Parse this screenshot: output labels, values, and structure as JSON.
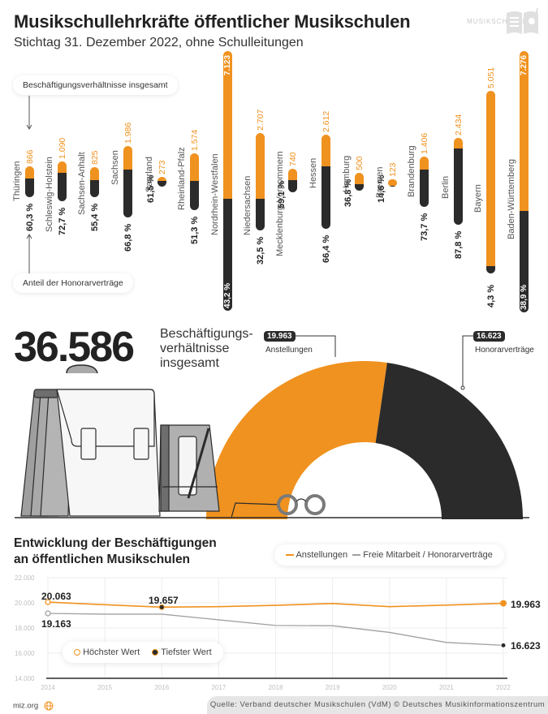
{
  "header": {
    "title": "Musikschullehrkräfte öffentlicher Musikschulen",
    "subtitle": "Stichtag 31. Dezember 2022, ohne Schulleitungen",
    "logo_text": "MUSIKSCHULEN",
    "logo_icon": "book-music-icon"
  },
  "annotations": {
    "total_label": "Beschäftigungsverhältnisse insgesamt",
    "share_label": "Anteil der Honorarverträge"
  },
  "colors": {
    "orange": "#f0921f",
    "dark": "#2b2b2b",
    "grey_line": "#a0a0a0"
  },
  "states": [
    {
      "name": "Thüringen",
      "total": "866",
      "pct": "60,3 %"
    },
    {
      "name": "Schleswig-Holstein",
      "total": "1.090",
      "pct": "72,7 %"
    },
    {
      "name": "Sachsen-Anhalt",
      "total": "825",
      "pct": "55,4 %"
    },
    {
      "name": "Sachsen",
      "total": "1.986",
      "pct": "66,8 %"
    },
    {
      "name": "Saarland",
      "total": "273",
      "pct": "61,5 %"
    },
    {
      "name": "Rheinland-Pfalz",
      "total": "1.574",
      "pct": "51,3 %"
    },
    {
      "name": "Nordrhein-Westfalen",
      "total": "7.123",
      "pct": "43,2 %"
    },
    {
      "name": "Niedersachsen",
      "total": "2.707",
      "pct": "32,5 %"
    },
    {
      "name": "Mecklenburg-Vorpommern",
      "total": "740",
      "pct": "59,1 %"
    },
    {
      "name": "Hessen",
      "total": "2.612",
      "pct": "66,4 %"
    },
    {
      "name": "Hamburg",
      "total": "500",
      "pct": "36,8 %"
    },
    {
      "name": "Bremen",
      "total": "123",
      "pct": "14,6 %"
    },
    {
      "name": "Brandenburg",
      "total": "1.406",
      "pct": "73,7 %"
    },
    {
      "name": "Berlin",
      "total": "2.434",
      "pct": "87,8 %"
    },
    {
      "name": "Bayern",
      "total": "5.051",
      "pct": "4,3 %"
    },
    {
      "name": "Baden-Württemberg",
      "total": "7.276",
      "pct": "38,9 %"
    }
  ],
  "summary": {
    "total": "36.586",
    "total_desc_1": "Beschäftigungs-",
    "total_desc_2": "verhältnisse",
    "total_desc_3": "insgesamt",
    "employed_value": "19.963",
    "employed_label": "Anstellungen",
    "freelance_value": "16.623",
    "freelance_label": "Honorarverträge"
  },
  "trend": {
    "title_1": "Entwicklung der Beschäftigungen",
    "title_2": "an öffentlichen Musikschulen",
    "legend_employed": "Anstellungen",
    "legend_freelance": "Freie Mitarbeit / Honorarverträge",
    "legend_max": "Höchster Wert",
    "legend_min": "Tiefster Wert",
    "y_ticks": [
      "22.000",
      "20.000",
      "18.000",
      "16.000",
      "14.000"
    ],
    "x_ticks": [
      "2014",
      "2015",
      "2016",
      "2017",
      "2018",
      "2019",
      "2020",
      "2021",
      "2022"
    ],
    "labels": {
      "emp_max": "20.063",
      "emp_min": "19.657",
      "emp_last": "19.963",
      "free_max": "19.163",
      "free_last": "16.623"
    }
  },
  "chart_data": [
    {
      "type": "bar",
      "title": "Musikschullehrkräfte öffentlicher Musikschulen",
      "subtitle": "Stichtag 31. Dezember 2022, ohne Schulleitungen",
      "categories": [
        "Thüringen",
        "Schleswig-Holstein",
        "Sachsen-Anhalt",
        "Sachsen",
        "Saarland",
        "Rheinland-Pfalz",
        "Nordrhein-Westfalen",
        "Niedersachsen",
        "Mecklenburg-Vorpommern",
        "Hessen",
        "Hamburg",
        "Bremen",
        "Brandenburg",
        "Berlin",
        "Bayern",
        "Baden-Württemberg"
      ],
      "series": [
        {
          "name": "Beschäftigungsverhältnisse insgesamt",
          "values": [
            866,
            1090,
            825,
            1986,
            273,
            1574,
            7123,
            2707,
            740,
            2612,
            500,
            123,
            1406,
            2434,
            5051,
            7276
          ]
        },
        {
          "name": "Anteil der Honorarverträge (%)",
          "values": [
            60.3,
            72.7,
            55.4,
            66.8,
            61.5,
            51.3,
            43.2,
            32.5,
            59.1,
            66.4,
            36.8,
            14.6,
            73.7,
            87.8,
            4.3,
            38.9
          ]
        }
      ]
    },
    {
      "type": "pie",
      "title": "36.586 Beschäftigungsverhältnisse insgesamt",
      "categories": [
        "Anstellungen",
        "Honorarverträge"
      ],
      "values": [
        19963,
        16623
      ]
    },
    {
      "type": "line",
      "title": "Entwicklung der Beschäftigungen an öffentlichen Musikschulen",
      "x": [
        2014,
        2015,
        2016,
        2017,
        2018,
        2019,
        2020,
        2021,
        2022
      ],
      "series": [
        {
          "name": "Anstellungen",
          "values": [
            20063,
            19850,
            19657,
            19700,
            19800,
            19950,
            19700,
            19820,
            19963
          ]
        },
        {
          "name": "Freie Mitarbeit / Honorarverträge",
          "values": [
            19163,
            19100,
            19100,
            18650,
            18200,
            18180,
            17650,
            16850,
            16623
          ]
        }
      ],
      "ylim": [
        14000,
        22000
      ],
      "y_ticks": [
        14000,
        16000,
        18000,
        20000,
        22000
      ],
      "annotations": [
        "Höchster Wert",
        "Tiefster Wert"
      ],
      "grid": true,
      "legend_position": "top-right"
    }
  ],
  "footer": {
    "site": "miz.org",
    "source": "Quelle: Verband deutscher Musikschulen (VdM) © Deutsches Musikinformationszentrum"
  }
}
